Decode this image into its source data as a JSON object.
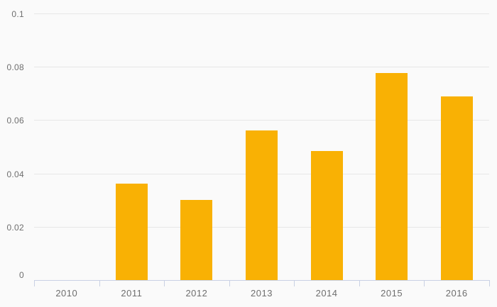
{
  "chart_data": {
    "type": "bar",
    "title": "",
    "xlabel": "",
    "ylabel": "",
    "categories": [
      "2010",
      "2011",
      "2012",
      "2013",
      "2014",
      "2015",
      "2016"
    ],
    "values": [
      0,
      0.0363,
      0.03,
      0.0562,
      0.0485,
      0.0776,
      0.069
    ],
    "ylim": [
      0,
      0.1
    ],
    "ytick_interval": 0.02,
    "ytick_values": [
      0,
      0.02,
      0.04,
      0.06,
      0.08,
      0.1
    ],
    "ytick_labels": [
      "0",
      "0.02",
      "0.04",
      "0.06",
      "0.08",
      "0.1"
    ],
    "grid": true,
    "legend": false,
    "colors": {
      "bar": "#f9b104",
      "background": "#fafafa",
      "gridline": "#e7e7e7",
      "axis_line": "#c9d1e4",
      "label_text": "#6e6e6e"
    }
  }
}
